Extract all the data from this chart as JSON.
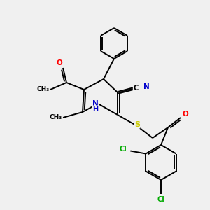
{
  "background_color": "#f0f0f0",
  "bond_color": "#000000",
  "atom_colors": {
    "O": "#ff0000",
    "N": "#0000cc",
    "S": "#cccc00",
    "Cl": "#00aa00",
    "C": "#000000",
    "H": "#0000cc"
  },
  "figsize": [
    3.0,
    3.0
  ],
  "dpi": 100,
  "lw": 1.4,
  "fontsize": 7.0
}
